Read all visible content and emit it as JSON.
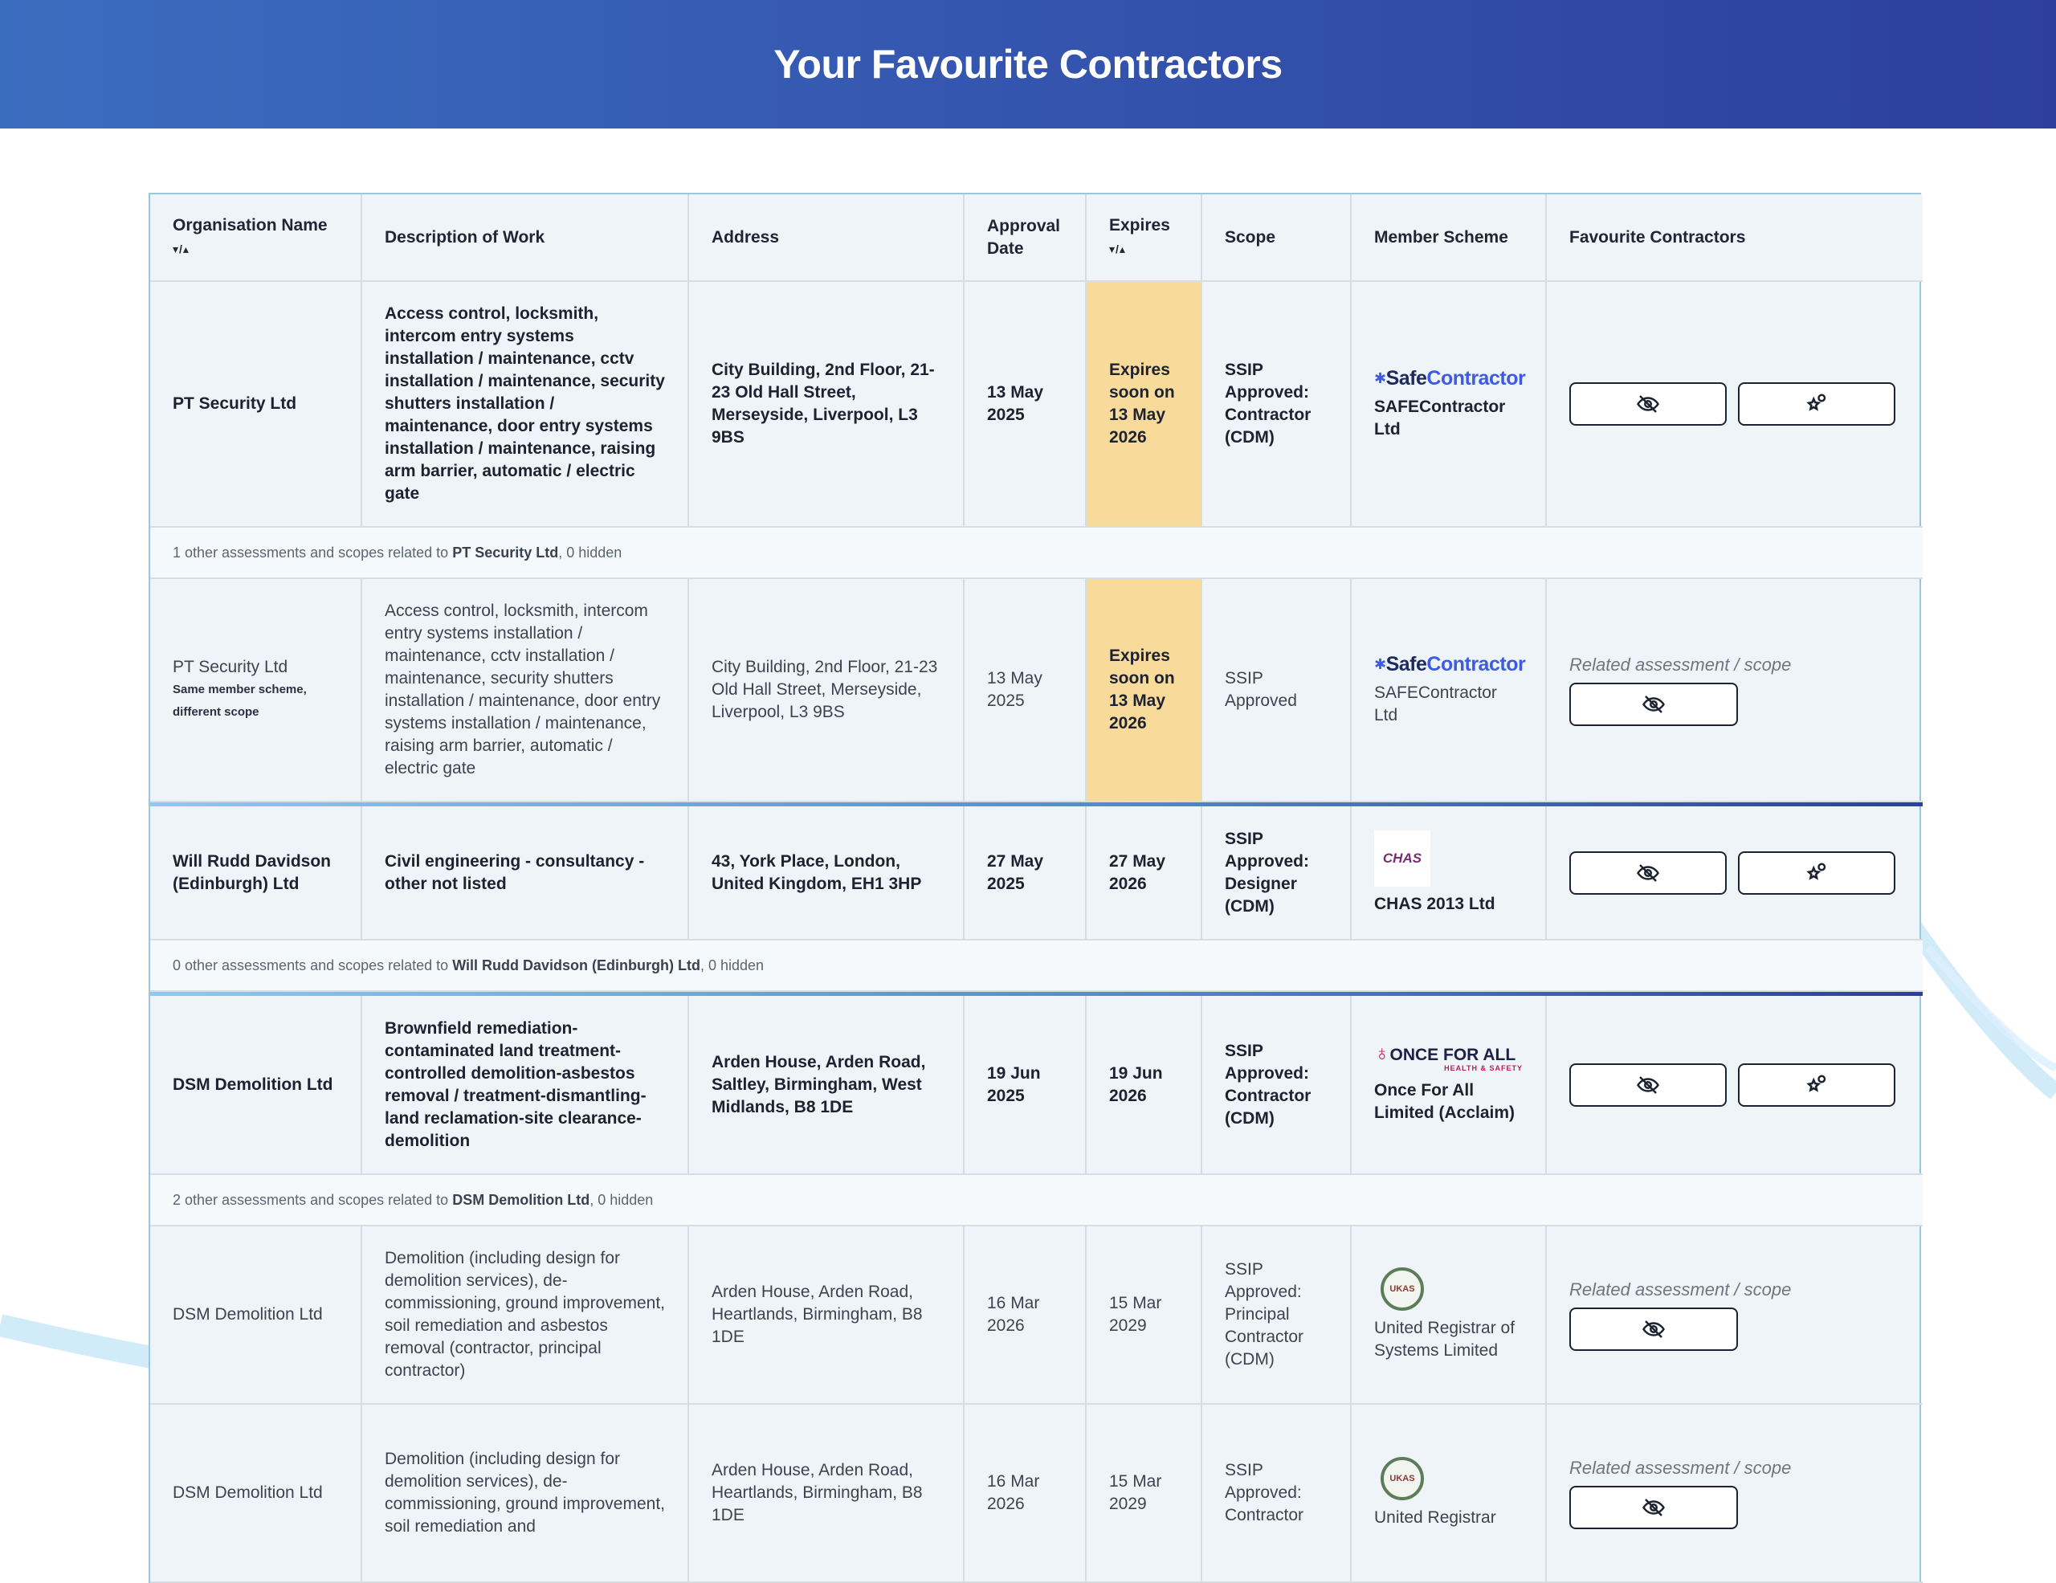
{
  "page": {
    "title": "Your Favourite Contractors"
  },
  "table": {
    "headers": {
      "org": "Organisation Name",
      "org_sort": "▾/▴",
      "desc": "Description of Work",
      "address": "Address",
      "approval": "Approval Date",
      "expires": "Expires",
      "expires_sort": "▾/▴",
      "scope": "Scope",
      "scheme": "Member Scheme",
      "fav": "Favourite Contractors"
    },
    "rows": {
      "pt_main": {
        "org": "PT Security Ltd",
        "desc": "Access control, locksmith, intercom entry systems installation / maintenance, cctv installation / maintenance, security shutters installation / maintenance, door entry systems installation / maintenance, raising arm barrier, automatic / electric gate",
        "address": "City Building, 2nd Floor, 21-23 Old Hall Street, Merseyside, Liverpool, L3 9BS",
        "approval": "13 May 2025",
        "expires": "Expires soon on 13 May 2026",
        "scope": "SSIP Approved: Contractor (CDM)",
        "scheme_logo": "SafeContractor",
        "scheme": "SAFEContractor Ltd"
      },
      "pt_note": {
        "prefix": "1 other assessments and scopes related to ",
        "name": "PT Security Ltd",
        "suffix": ", 0 hidden"
      },
      "pt_sub": {
        "org": "PT Security Ltd",
        "org_note": "Same member scheme, different scope",
        "desc": "Access control, locksmith, intercom entry systems installation / maintenance, cctv installation / maintenance, security shutters installation / maintenance, door entry systems installation / maintenance, raising arm barrier, automatic / electric gate",
        "address": "City Building, 2nd Floor, 21-23 Old Hall Street, Merseyside, Liverpool, L3 9BS",
        "approval": "13 May 2025",
        "expires": "Expires soon on 13 May 2026",
        "scope": "SSIP Approved",
        "scheme_logo": "SafeContractor",
        "scheme": "SAFEContractor Ltd",
        "related": "Related assessment / scope"
      },
      "wr_main": {
        "org": "Will Rudd Davidson (Edinburgh) Ltd",
        "desc": "Civil engineering - consultancy - other not listed",
        "address": "43, York Place, London, United Kingdom, EH1 3HP",
        "approval": "27 May 2025",
        "expires": "27 May 2026",
        "scope": "SSIP Approved: Designer (CDM)",
        "scheme_logo": "CHAS",
        "scheme": "CHAS 2013 Ltd"
      },
      "wr_note": {
        "prefix": "0 other assessments and scopes related to ",
        "name": "Will Rudd Davidson (Edinburgh) Ltd",
        "suffix": ", 0 hidden"
      },
      "dsm_main": {
        "org": "DSM Demolition Ltd",
        "desc": "Brownfield remediation-contaminated land treatment-controlled demolition-asbestos removal / treatment-dismantling-land reclamation-site clearance-demolition",
        "address": "Arden House, Arden Road, Saltley, Birmingham, West Midlands, B8 1DE",
        "approval": "19 Jun 2025",
        "expires": "19 Jun 2026",
        "scope": "SSIP Approved: Contractor (CDM)",
        "scheme_logo": "ONCE FOR ALL",
        "scheme_logo_sub": "HEALTH & SAFETY",
        "scheme": "Once For All Limited (Acclaim)"
      },
      "dsm_note": {
        "prefix": "2 other assessments and scopes related to ",
        "name": "DSM Demolition Ltd",
        "suffix": ", 0 hidden"
      },
      "dsm_sub1": {
        "org": "DSM Demolition Ltd",
        "desc": "Demolition (including design for demolition services), de-commissioning, ground improvement, soil remediation and asbestos removal (contractor, principal contractor)",
        "address": "Arden House, Arden Road, Heartlands, Birmingham, B8 1DE",
        "approval": "16 Mar 2026",
        "expires": "15 Mar 2029",
        "scope": "SSIP Approved: Principal Contractor (CDM)",
        "scheme_logo": "UKAS",
        "scheme": "United Registrar of Systems Limited",
        "related": "Related assessment / scope"
      },
      "dsm_sub2": {
        "org": "DSM Demolition Ltd",
        "desc": "Demolition (including design for demolition services), de-commissioning, ground improvement, soil remediation and",
        "address": "Arden House, Arden Road, Heartlands, Birmingham, B8 1DE",
        "approval": "16 Mar 2026",
        "expires": "15 Mar 2029",
        "scope": "SSIP Approved: Contractor",
        "scheme_logo": "UKAS",
        "scheme": "United Registrar",
        "related": "Related assessment / scope"
      }
    }
  },
  "colors": {
    "header_start": "#3b6dbf",
    "header_end": "#2c3f9e",
    "expiring": "#f8da9b",
    "border": "#9cc6e0"
  },
  "icons": {
    "hide": "eye-slash-icon",
    "favourite": "star-pin-icon"
  }
}
